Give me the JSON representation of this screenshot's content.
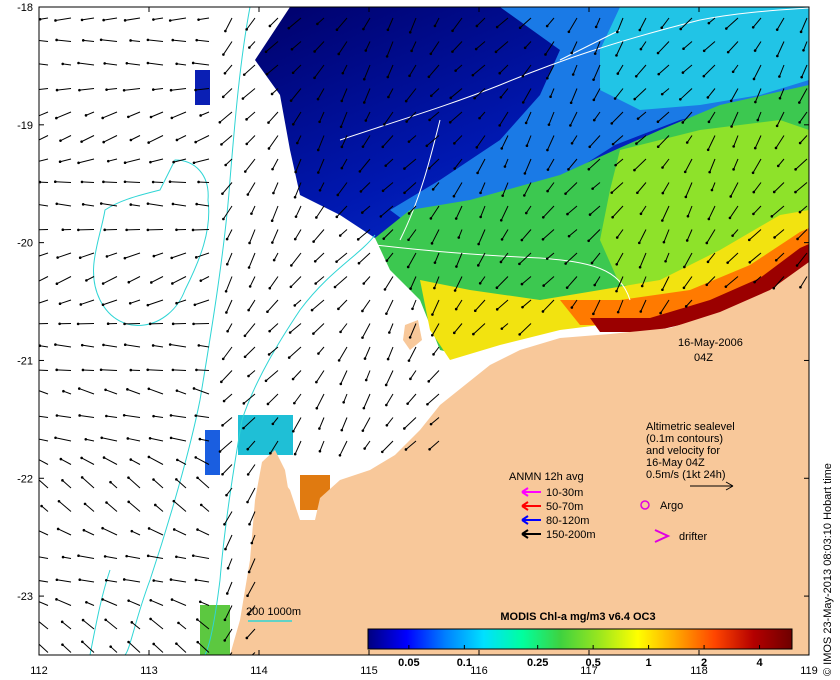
{
  "chart_data": {
    "type": "map",
    "extent": {
      "lon": [
        112,
        119
      ],
      "lat": [
        -23.5,
        -18
      ]
    },
    "x_ticks": [
      112,
      113,
      114,
      115,
      116,
      117,
      118,
      119
    ],
    "y_ticks": [
      -18,
      -19,
      -20,
      -21,
      -22,
      -23
    ],
    "colorbar": {
      "title": "MODIS Chl-a mg/m3 v6.4 OC3",
      "ticks": [
        "0.05",
        "0.1",
        "0.25",
        "0.5",
        "1",
        "2",
        "4"
      ],
      "tick_values": [
        0.05,
        0.1,
        0.25,
        0.5,
        1,
        2,
        4
      ],
      "range": [
        0.03,
        6
      ],
      "scale": "log",
      "colors": [
        "#00007f",
        "#0000ff",
        "#007fff",
        "#00e0ff",
        "#00ff9f",
        "#3fd23f",
        "#9ae61e",
        "#ffff00",
        "#ffa500",
        "#ff4500",
        "#b40000",
        "#6e0000"
      ]
    },
    "colors": {
      "land": "#f8c89a",
      "contour": "#2fd5d5",
      "sealevel_contour": "#ffffff",
      "arrow": "#000000"
    }
  },
  "annotations": {
    "date": "16-May-2006",
    "time": "04Z",
    "altimetry_lines": [
      "Altimetric sealevel",
      "(0.1m contours)",
      "and velocity for",
      "16-May 04Z",
      "0.5m/s (1kt 24h)"
    ],
    "depth_scale": "200  1000m",
    "credit": "© IMOS 23-May-2013 08:03:10 Hobart time"
  },
  "legend": {
    "title": "ANMN 12h avg",
    "items": [
      {
        "label": "10-30m",
        "color": "#ff00ff"
      },
      {
        "label": "50-70m",
        "color": "#ff0000"
      },
      {
        "label": "80-120m",
        "color": "#0000ff"
      },
      {
        "label": "150-200m",
        "color": "#000000"
      }
    ],
    "argo_label": "Argo",
    "argo_color": "#e000e0",
    "drifter_label": "drifter",
    "drifter_color": "#e000e0"
  }
}
